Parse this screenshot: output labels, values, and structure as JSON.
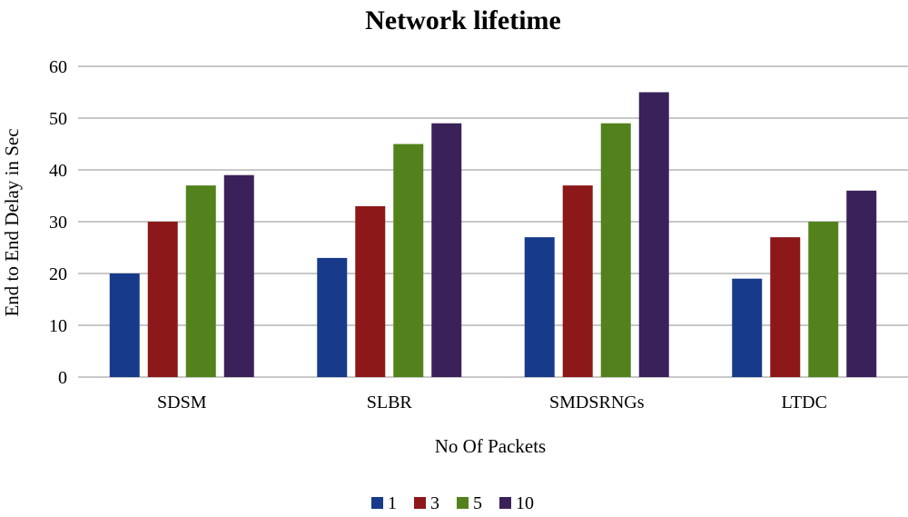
{
  "chart_data": {
    "type": "bar",
    "title": "Network lifetime",
    "xlabel": "No Of Packets",
    "ylabel": "End to End Delay in Sec",
    "categories": [
      "SDSM",
      "SLBR",
      "SMDSRNGs",
      "LTDC"
    ],
    "series": [
      {
        "name": "1",
        "color": "#173a8a",
        "values": [
          20,
          23,
          27,
          19
        ]
      },
      {
        "name": "3",
        "color": "#8d1819",
        "values": [
          30,
          33,
          37,
          27
        ]
      },
      {
        "name": "5",
        "color": "#53821c",
        "values": [
          37,
          45,
          49,
          30
        ]
      },
      {
        "name": "10",
        "color": "#3b2159",
        "values": [
          39,
          49,
          55,
          36
        ]
      }
    ],
    "ylim": [
      0,
      60
    ],
    "yticks": [
      0,
      10,
      20,
      30,
      40,
      50,
      60
    ],
    "grid": true,
    "legend": "bottom"
  }
}
